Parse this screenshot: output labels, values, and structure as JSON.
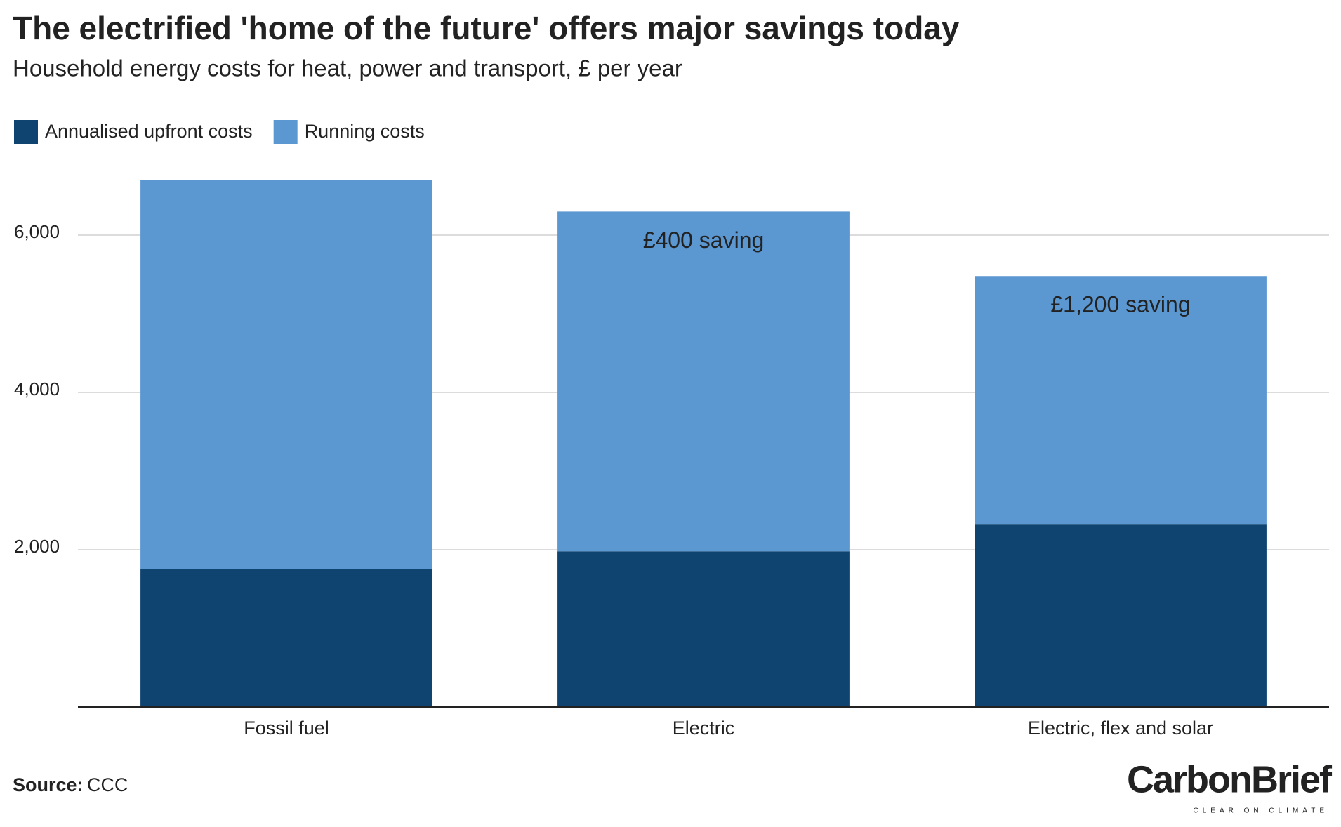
{
  "chart_data": {
    "type": "stacked-bar",
    "title": "The electrified 'home of the future' offers major savings today",
    "subtitle": "Household energy costs for heat, power and transport, £ per year",
    "categories": [
      "Fossil fuel",
      "Electric",
      "Electric, flex and solar"
    ],
    "series": [
      {
        "name": "Annualised upfront costs",
        "color": "#0f4470",
        "values": [
          1750,
          1980,
          2320
        ]
      },
      {
        "name": "Running costs",
        "color": "#5b97d1",
        "values": [
          4950,
          4320,
          3160
        ]
      }
    ],
    "annotations": [
      {
        "text": "£400 saving",
        "category": "Electric"
      },
      {
        "text": "£1,200 saving",
        "category": "Electric, flex and solar"
      }
    ],
    "ylim": [
      0,
      7000
    ],
    "yticks": [
      {
        "value": 2000,
        "label": "2,000"
      },
      {
        "value": 4000,
        "label": "4,000"
      },
      {
        "value": 6000,
        "label": "6,000"
      }
    ],
    "grid": true,
    "legend": "top-left"
  },
  "footer": {
    "source_label": "Source:",
    "source": "CCC",
    "logo": "CarbonBrief",
    "tagline": "CLEAR ON CLIMATE"
  }
}
